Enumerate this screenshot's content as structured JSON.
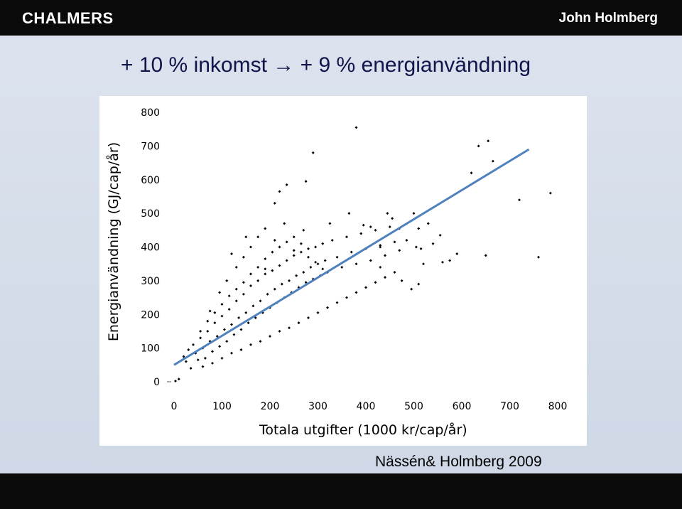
{
  "header": {
    "logo_text": "CHALMERS",
    "author": "John Holmberg"
  },
  "slide": {
    "title_left": "+ 10 % inkomst",
    "title_arrow": "→",
    "title_right": "+ 9 % energianvändning",
    "citation": "Nässén& Holmberg 2009"
  },
  "colors": {
    "header_bg": "#0a0a0a",
    "slide_bg": "#d5dde9",
    "title": "#10154a",
    "points": "#000000",
    "trend_line": "#4f81bd"
  },
  "chart_data": {
    "type": "scatter",
    "xlabel": "Totala utgifter (1000 kr/cap/år)",
    "ylabel": "Energianvändning (GJ/cap/år)",
    "xlim": [
      0,
      800
    ],
    "ylim": [
      0,
      800
    ],
    "xticks": [
      0,
      100,
      200,
      300,
      400,
      500,
      600,
      700,
      800
    ],
    "yticks": [
      0,
      100,
      200,
      300,
      400,
      500,
      600,
      700,
      800
    ],
    "grid": false,
    "legend": "none",
    "trend_line": {
      "x": [
        0,
        740
      ],
      "y": [
        50,
        690
      ]
    },
    "points": [
      [
        3,
        2
      ],
      [
        10,
        8
      ],
      [
        20,
        75
      ],
      [
        25,
        60
      ],
      [
        30,
        95
      ],
      [
        35,
        40
      ],
      [
        40,
        110
      ],
      [
        45,
        85
      ],
      [
        50,
        65
      ],
      [
        55,
        130
      ],
      [
        60,
        100
      ],
      [
        65,
        70
      ],
      [
        70,
        150
      ],
      [
        75,
        120
      ],
      [
        80,
        90
      ],
      [
        85,
        175
      ],
      [
        90,
        135
      ],
      [
        95,
        105
      ],
      [
        100,
        195
      ],
      [
        105,
        155
      ],
      [
        110,
        120
      ],
      [
        115,
        215
      ],
      [
        120,
        170
      ],
      [
        125,
        140
      ],
      [
        130,
        240
      ],
      [
        135,
        190
      ],
      [
        140,
        155
      ],
      [
        145,
        260
      ],
      [
        150,
        205
      ],
      [
        155,
        175
      ],
      [
        160,
        285
      ],
      [
        165,
        225
      ],
      [
        170,
        190
      ],
      [
        175,
        300
      ],
      [
        180,
        240
      ],
      [
        185,
        205
      ],
      [
        190,
        320
      ],
      [
        195,
        260
      ],
      [
        200,
        220
      ],
      [
        205,
        330
      ],
      [
        210,
        275
      ],
      [
        215,
        235
      ],
      [
        220,
        345
      ],
      [
        225,
        290
      ],
      [
        230,
        250
      ],
      [
        235,
        360
      ],
      [
        240,
        300
      ],
      [
        245,
        265
      ],
      [
        250,
        375
      ],
      [
        255,
        315
      ],
      [
        260,
        280
      ],
      [
        265,
        385
      ],
      [
        270,
        325
      ],
      [
        275,
        295
      ],
      [
        280,
        395
      ],
      [
        285,
        340
      ],
      [
        290,
        305
      ],
      [
        295,
        400
      ],
      [
        300,
        350
      ],
      [
        305,
        315
      ],
      [
        310,
        410
      ],
      [
        315,
        360
      ],
      [
        320,
        325
      ],
      [
        330,
        420
      ],
      [
        340,
        370
      ],
      [
        350,
        340
      ],
      [
        360,
        430
      ],
      [
        370,
        385
      ],
      [
        380,
        350
      ],
      [
        390,
        440
      ],
      [
        400,
        395
      ],
      [
        410,
        360
      ],
      [
        420,
        450
      ],
      [
        430,
        405
      ],
      [
        440,
        375
      ],
      [
        450,
        460
      ],
      [
        460,
        415
      ],
      [
        470,
        390
      ],
      [
        75,
        210
      ],
      [
        95,
        265
      ],
      [
        110,
        300
      ],
      [
        130,
        340
      ],
      [
        145,
        370
      ],
      [
        160,
        400
      ],
      [
        175,
        430
      ],
      [
        190,
        455
      ],
      [
        210,
        420
      ],
      [
        230,
        470
      ],
      [
        250,
        430
      ],
      [
        270,
        450
      ],
      [
        60,
        45
      ],
      [
        80,
        55
      ],
      [
        100,
        70
      ],
      [
        120,
        85
      ],
      [
        140,
        95
      ],
      [
        160,
        110
      ],
      [
        180,
        120
      ],
      [
        200,
        135
      ],
      [
        220,
        150
      ],
      [
        240,
        160
      ],
      [
        260,
        175
      ],
      [
        280,
        190
      ],
      [
        300,
        205
      ],
      [
        320,
        220
      ],
      [
        340,
        235
      ],
      [
        360,
        250
      ],
      [
        380,
        265
      ],
      [
        400,
        280
      ],
      [
        420,
        295
      ],
      [
        440,
        310
      ],
      [
        460,
        325
      ],
      [
        55,
        150
      ],
      [
        70,
        180
      ],
      [
        85,
        205
      ],
      [
        100,
        230
      ],
      [
        115,
        255
      ],
      [
        130,
        275
      ],
      [
        145,
        295
      ],
      [
        160,
        320
      ],
      [
        175,
        340
      ],
      [
        190,
        365
      ],
      [
        205,
        385
      ],
      [
        220,
        400
      ],
      [
        235,
        415
      ],
      [
        250,
        390
      ],
      [
        265,
        410
      ],
      [
        280,
        370
      ],
      [
        295,
        355
      ],
      [
        310,
        335
      ],
      [
        150,
        430
      ],
      [
        190,
        335
      ],
      [
        120,
        380
      ],
      [
        210,
        530
      ],
      [
        220,
        565
      ],
      [
        235,
        585
      ],
      [
        275,
        595
      ],
      [
        290,
        680
      ],
      [
        380,
        755
      ],
      [
        410,
        460
      ],
      [
        430,
        400
      ],
      [
        500,
        500
      ],
      [
        510,
        455
      ],
      [
        530,
        470
      ],
      [
        445,
        500
      ],
      [
        455,
        485
      ],
      [
        470,
        455
      ],
      [
        485,
        420
      ],
      [
        505,
        400
      ],
      [
        515,
        395
      ],
      [
        520,
        350
      ],
      [
        540,
        410
      ],
      [
        555,
        435
      ],
      [
        560,
        355
      ],
      [
        575,
        360
      ],
      [
        590,
        380
      ],
      [
        635,
        700
      ],
      [
        655,
        715
      ],
      [
        665,
        655
      ],
      [
        720,
        540
      ],
      [
        760,
        370
      ],
      [
        785,
        560
      ],
      [
        620,
        620
      ],
      [
        650,
        375
      ],
      [
        430,
        340
      ],
      [
        475,
        300
      ],
      [
        495,
        275
      ],
      [
        510,
        290
      ],
      [
        325,
        470
      ],
      [
        365,
        500
      ],
      [
        395,
        465
      ]
    ]
  }
}
